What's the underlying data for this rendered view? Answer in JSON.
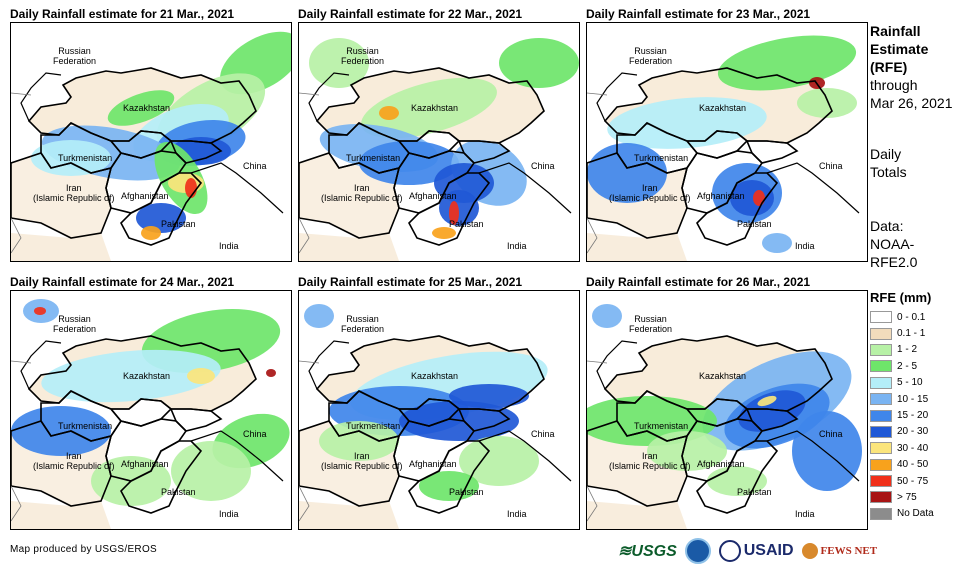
{
  "panels": [
    {
      "title": "Daily Rainfall estimate for 21 Mar., 2021"
    },
    {
      "title": "Daily Rainfall estimate for 22 Mar., 2021"
    },
    {
      "title": "Daily Rainfall estimate for 23 Mar., 2021"
    },
    {
      "title": "Daily Rainfall estimate for 24 Mar., 2021"
    },
    {
      "title": "Daily Rainfall estimate for 25 Mar., 2021"
    },
    {
      "title": "Daily Rainfall estimate for 26 Mar., 2021"
    }
  ],
  "map_labels": {
    "russia": "Russian\nFederation",
    "kazakhstan": "Kazakhstan",
    "turkmenistan": "Turkmenistan",
    "china": "China",
    "iran": "Iran\n(Islamic Republic of)",
    "afghanistan": "Afghanistan",
    "pakistan": "Pakistan",
    "india": "India"
  },
  "info": {
    "line1": "Rainfall",
    "line2": "Estimate",
    "line3": "(RFE)",
    "line4": "through",
    "line5": "Mar 26, 2021",
    "line6": "Daily",
    "line7": "Totals",
    "line8": "Data:",
    "line9": "NOAA-",
    "line10": "RFE2.0"
  },
  "legend": {
    "title": "RFE (mm)",
    "items": [
      {
        "label": "0 - 0.1",
        "color": "#ffffff"
      },
      {
        "label": "0.1 - 1",
        "color": "#f2dcbc"
      },
      {
        "label": "1 - 2",
        "color": "#b7f1a6"
      },
      {
        "label": "2 - 5",
        "color": "#6ee56a"
      },
      {
        "label": "5 - 10",
        "color": "#b4eef8"
      },
      {
        "label": "10 - 15",
        "color": "#7ab4f2"
      },
      {
        "label": "15 - 20",
        "color": "#3f86ea"
      },
      {
        "label": "20 - 30",
        "color": "#1f58d6"
      },
      {
        "label": "30 - 40",
        "color": "#fbe57c"
      },
      {
        "label": "40 - 50",
        "color": "#f8a21c"
      },
      {
        "label": "50 - 75",
        "color": "#f0301a"
      },
      {
        "label": "> 75",
        "color": "#a81414"
      },
      {
        "label": "No Data",
        "color": "#8c8c8c"
      }
    ]
  },
  "footer": "Map produced by USGS/EROS",
  "logos": {
    "usgs": "≋USGS",
    "usaid": "USAID",
    "fews": "FEWS NET"
  }
}
